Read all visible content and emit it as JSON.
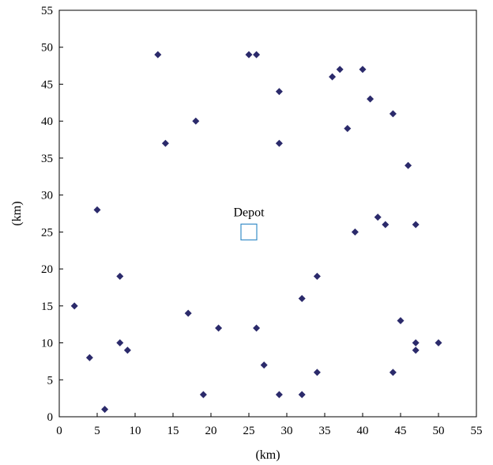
{
  "chart_data": {
    "type": "scatter",
    "xlabel": "(km)",
    "ylabel": "(km)",
    "xlim": [
      0,
      55
    ],
    "ylim": [
      0,
      55
    ],
    "xticks": [
      0,
      5,
      10,
      15,
      20,
      25,
      30,
      35,
      40,
      45,
      50,
      55
    ],
    "yticks": [
      0,
      5,
      10,
      15,
      20,
      25,
      30,
      35,
      40,
      45,
      50,
      55
    ],
    "grid": false,
    "colors": {
      "points": "#2b2a6b",
      "depot": "#3a8fc8",
      "axis": "#000000"
    },
    "depot": {
      "label": "Depot",
      "x": 25,
      "y": 25
    },
    "points": [
      {
        "x": 2,
        "y": 15
      },
      {
        "x": 4,
        "y": 8
      },
      {
        "x": 5,
        "y": 28
      },
      {
        "x": 6,
        "y": 1
      },
      {
        "x": 8,
        "y": 19
      },
      {
        "x": 8,
        "y": 10
      },
      {
        "x": 9,
        "y": 9
      },
      {
        "x": 13,
        "y": 49
      },
      {
        "x": 14,
        "y": 37
      },
      {
        "x": 17,
        "y": 14
      },
      {
        "x": 18,
        "y": 40
      },
      {
        "x": 19,
        "y": 3
      },
      {
        "x": 21,
        "y": 12
      },
      {
        "x": 25,
        "y": 49
      },
      {
        "x": 26,
        "y": 49
      },
      {
        "x": 26,
        "y": 12
      },
      {
        "x": 27,
        "y": 7
      },
      {
        "x": 29,
        "y": 44
      },
      {
        "x": 29,
        "y": 37
      },
      {
        "x": 29,
        "y": 3
      },
      {
        "x": 32,
        "y": 16
      },
      {
        "x": 32,
        "y": 3
      },
      {
        "x": 34,
        "y": 19
      },
      {
        "x": 34,
        "y": 6
      },
      {
        "x": 36,
        "y": 46
      },
      {
        "x": 37,
        "y": 47
      },
      {
        "x": 38,
        "y": 39
      },
      {
        "x": 39,
        "y": 25
      },
      {
        "x": 40,
        "y": 47
      },
      {
        "x": 41,
        "y": 43
      },
      {
        "x": 42,
        "y": 27
      },
      {
        "x": 43,
        "y": 26
      },
      {
        "x": 44,
        "y": 41
      },
      {
        "x": 44,
        "y": 6
      },
      {
        "x": 45,
        "y": 13
      },
      {
        "x": 46,
        "y": 34
      },
      {
        "x": 47,
        "y": 26
      },
      {
        "x": 47,
        "y": 10
      },
      {
        "x": 47,
        "y": 9
      },
      {
        "x": 50,
        "y": 10
      }
    ]
  }
}
